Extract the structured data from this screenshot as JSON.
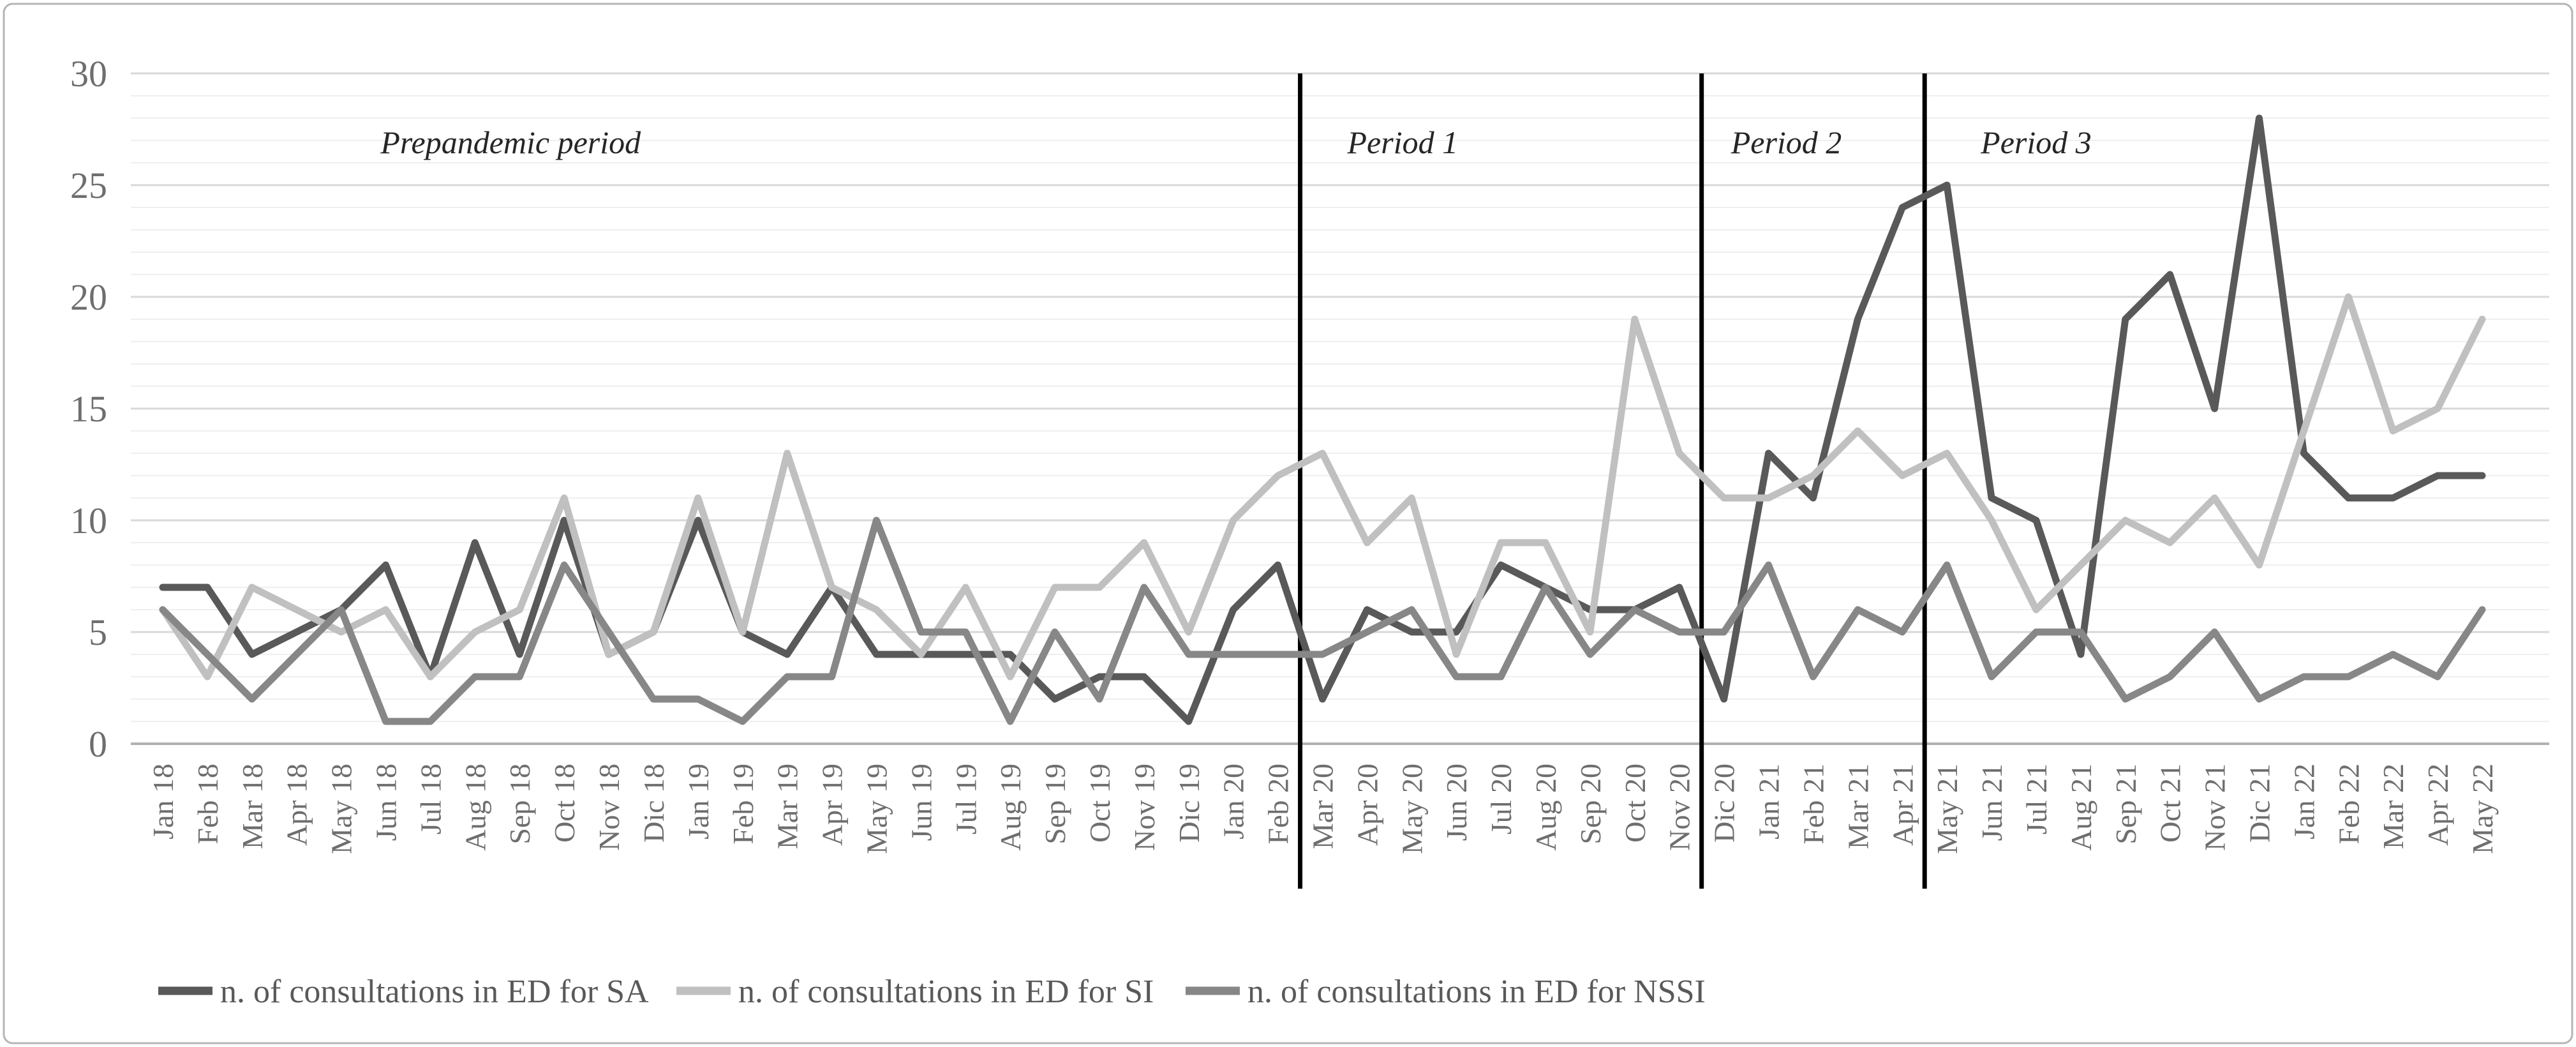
{
  "chart_data": {
    "type": "line",
    "title": "",
    "xlabel": "",
    "ylabel": "",
    "ylim": [
      0,
      30
    ],
    "y_ticks": [
      0,
      5,
      10,
      15,
      20,
      25,
      30
    ],
    "grid": "horizontal-every-1-major-every-5",
    "legend_position": "bottom",
    "categories": [
      "Jan 18",
      "Feb 18",
      "Mar 18",
      "Apr 18",
      "May 18",
      "Jun 18",
      "Jul 18",
      "Aug 18",
      "Sep 18",
      "Oct 18",
      "Nov 18",
      "Dic 18",
      "Jan 19",
      "Feb 19",
      "Mar 19",
      "Apr 19",
      "May 19",
      "Jun 19",
      "Jul 19",
      "Aug 19",
      "Sep 19",
      "Oct 19",
      "Nov 19",
      "Dic 19",
      "Jan 20",
      "Feb 20",
      "Mar 20",
      "Apr 20",
      "May 20",
      "Jun 20",
      "Jul 20",
      "Aug 20",
      "Sep 20",
      "Oct 20",
      "Nov 20",
      "Dic 20",
      "Jan 21",
      "Feb 21",
      "Mar 21",
      "Apr 21",
      "May 21",
      "Jun 21",
      "Jul 21",
      "Aug 21",
      "Sep 21",
      "Oct 21",
      "Nov 21",
      "Dic 21",
      "Jan 22",
      "Feb 22",
      "Mar 22",
      "Apr 22",
      "May 22"
    ],
    "series": [
      {
        "name": "n. of consultations in ED for SA",
        "color": "#595959",
        "values": [
          7,
          7,
          4,
          5,
          6,
          8,
          3,
          9,
          4,
          10,
          4,
          5,
          10,
          5,
          4,
          7,
          4,
          4,
          4,
          4,
          2,
          3,
          3,
          1,
          6,
          8,
          2,
          6,
          5,
          5,
          8,
          7,
          6,
          6,
          7,
          2,
          13,
          11,
          19,
          24,
          25,
          11,
          10,
          4,
          19,
          21,
          15,
          28,
          13,
          11,
          11,
          12,
          12
        ]
      },
      {
        "name": "n. of consultations in ED for SI",
        "color": "#c0c0c0",
        "values": [
          6,
          3,
          7,
          6,
          5,
          6,
          3,
          5,
          6,
          11,
          4,
          5,
          11,
          5,
          13,
          7,
          6,
          4,
          7,
          3,
          7,
          7,
          9,
          5,
          10,
          12,
          13,
          9,
          11,
          4,
          9,
          9,
          5,
          19,
          13,
          11,
          11,
          12,
          14,
          12,
          13,
          10,
          6,
          8,
          10,
          9,
          11,
          8,
          14,
          20,
          14,
          15,
          19
        ]
      },
      {
        "name": "n. of consultations in ED for NSSI",
        "color": "#878787",
        "values": [
          6,
          4,
          2,
          4,
          6,
          1,
          1,
          3,
          3,
          8,
          5,
          2,
          2,
          1,
          3,
          3,
          10,
          5,
          5,
          1,
          5,
          2,
          7,
          4,
          4,
          4,
          4,
          5,
          6,
          3,
          3,
          7,
          4,
          6,
          5,
          5,
          8,
          3,
          6,
          5,
          8,
          3,
          5,
          5,
          2,
          3,
          5,
          2,
          3,
          3,
          4,
          3,
          6
        ]
      }
    ],
    "separators": [
      {
        "after_category": "Feb 20",
        "boundary_index": 25.5
      },
      {
        "after_category": "Nov 20",
        "boundary_index": 34.5
      },
      {
        "after_category": "Apr 21",
        "boundary_index": 39.5
      }
    ],
    "period_labels": [
      {
        "text": "Prepandemic period",
        "center_index": 7.8
      },
      {
        "text": "Period 1",
        "center_index": 27.8
      },
      {
        "text": "Period 2",
        "center_index": 36.4
      },
      {
        "text": "Period 3",
        "center_index": 42.0
      }
    ],
    "colors": {
      "minor_grid": "#efefef",
      "major_grid": "#d8d8d8",
      "axis_line": "#b0b0b0",
      "separator_line": "#000000",
      "border": "#b5b5b5",
      "tick_text": "#6e6e6e",
      "period_text": "#262626",
      "legend_text": "#595959"
    }
  }
}
